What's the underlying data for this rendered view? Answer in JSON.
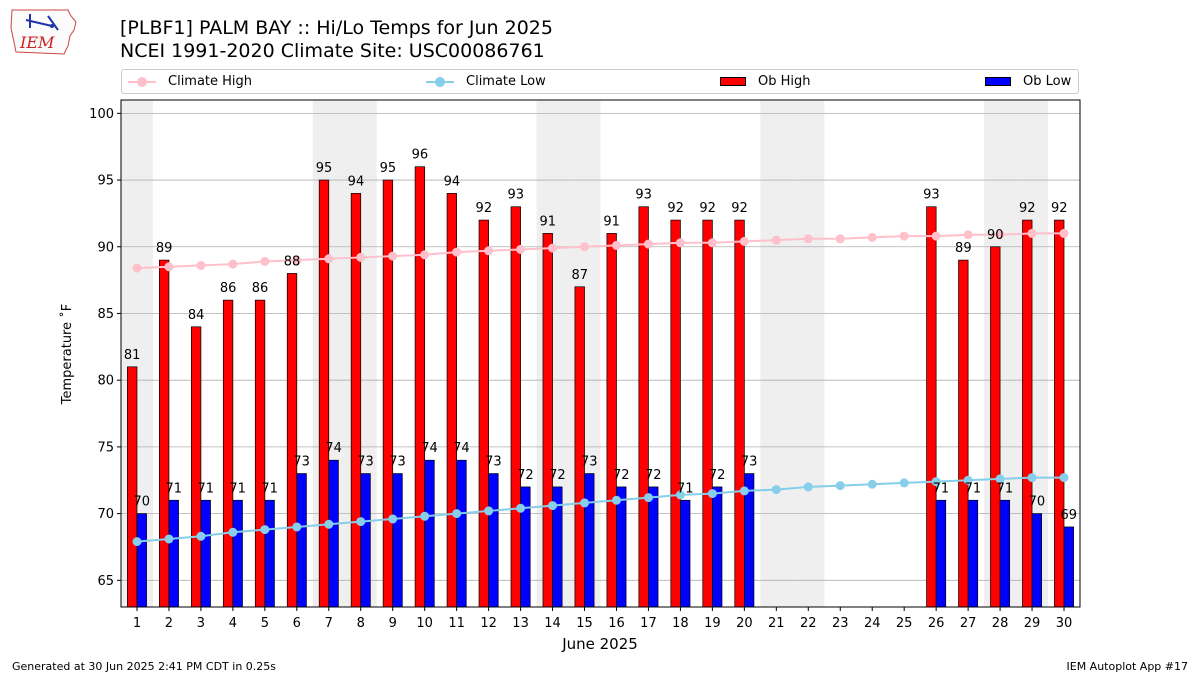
{
  "logo": {
    "text": "IEM"
  },
  "header": {
    "title_line1": "[PLBF1] PALM BAY :: Hi/Lo Temps for Jun 2025",
    "title_line2": "NCEI 1991-2020 Climate Site: USC00086761"
  },
  "legend": {
    "climate_high": "Climate High",
    "climate_low": "Climate Low",
    "ob_high": "Ob High",
    "ob_low": "Ob Low"
  },
  "colors": {
    "ob_high": "#ff0000",
    "ob_low": "#0000ff",
    "climate_high": "#ffc0cb",
    "climate_low": "#87ceeb",
    "weekend_band": "#efefef",
    "grid": "#b0b0b0"
  },
  "chart_data": {
    "type": "bar",
    "xlabel": "June 2025",
    "ylabel": "Temperature ˚F",
    "ylim": [
      63,
      101
    ],
    "yticks": [
      65,
      70,
      75,
      80,
      85,
      90,
      95,
      100
    ],
    "grid": "horizontal",
    "legend_position": "top",
    "categories": [
      "1",
      "2",
      "3",
      "4",
      "5",
      "6",
      "7",
      "8",
      "9",
      "10",
      "11",
      "12",
      "13",
      "14",
      "15",
      "16",
      "17",
      "18",
      "19",
      "20",
      "21",
      "22",
      "23",
      "24",
      "25",
      "26",
      "27",
      "28",
      "29",
      "30"
    ],
    "weekend_days": [
      1,
      7,
      8,
      14,
      15,
      21,
      22,
      28,
      29
    ],
    "series": [
      {
        "name": "Ob High",
        "kind": "bar",
        "values": [
          81,
          89,
          84,
          86,
          86,
          88,
          95,
          94,
          95,
          96,
          94,
          92,
          93,
          91,
          87,
          91,
          93,
          92,
          92,
          92,
          null,
          null,
          null,
          null,
          null,
          93,
          89,
          90,
          92,
          92
        ]
      },
      {
        "name": "Ob Low",
        "kind": "bar",
        "values": [
          70,
          71,
          71,
          71,
          71,
          73,
          74,
          73,
          73,
          74,
          74,
          73,
          72,
          72,
          73,
          72,
          72,
          71,
          72,
          73,
          null,
          null,
          null,
          null,
          null,
          71,
          71,
          71,
          70,
          69
        ]
      },
      {
        "name": "Climate High",
        "kind": "line",
        "values": [
          88.4,
          88.5,
          88.6,
          88.7,
          88.9,
          89.0,
          89.1,
          89.2,
          89.3,
          89.4,
          89.6,
          89.7,
          89.8,
          89.9,
          90.0,
          90.1,
          90.2,
          90.3,
          90.3,
          90.4,
          90.5,
          90.6,
          90.6,
          90.7,
          90.8,
          90.8,
          90.9,
          90.9,
          91.0,
          91.0
        ]
      },
      {
        "name": "Climate Low",
        "kind": "line",
        "values": [
          67.9,
          68.1,
          68.3,
          68.6,
          68.8,
          69.0,
          69.2,
          69.4,
          69.6,
          69.8,
          70.0,
          70.2,
          70.4,
          70.6,
          70.8,
          71.0,
          71.2,
          71.4,
          71.5,
          71.7,
          71.8,
          72.0,
          72.1,
          72.2,
          72.3,
          72.4,
          72.5,
          72.6,
          72.7,
          72.7
        ]
      }
    ]
  },
  "footer": {
    "generated": "Generated at 30 Jun 2025 2:41 PM CDT in 0.25s",
    "app": "IEM Autoplot App #17"
  }
}
